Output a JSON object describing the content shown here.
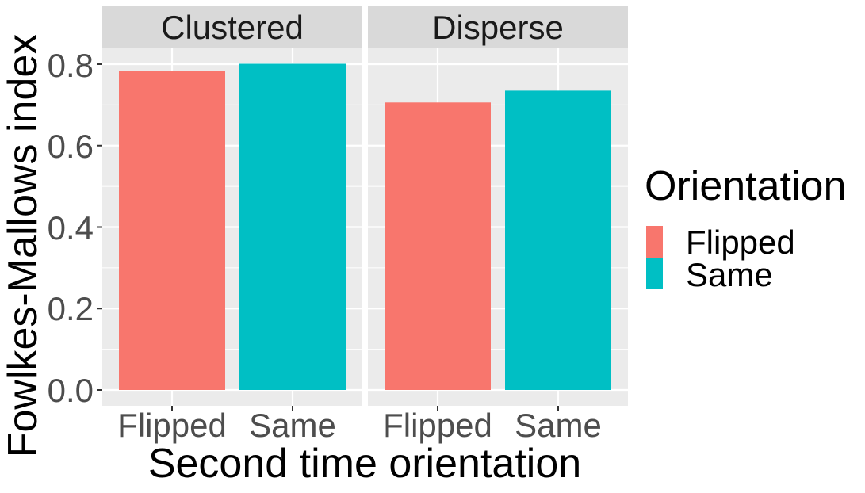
{
  "chart_data": {
    "type": "bar",
    "facets": [
      "Clustered",
      "Disperse"
    ],
    "categories": [
      "Flipped",
      "Same"
    ],
    "series": [
      {
        "name": "Flipped",
        "values": [
          0.783,
          0.706
        ]
      },
      {
        "name": "Same",
        "values": [
          0.801,
          0.735
        ]
      }
    ],
    "xlabel": "Second time orientation",
    "ylabel": "Fowlkes-Mallows index",
    "ylim": [
      0,
      0.8
    ],
    "yticks": [
      "0.0",
      "0.2",
      "0.4",
      "0.6",
      "0.8"
    ],
    "legend": {
      "title": "Orientation",
      "entries": [
        "Flipped",
        "Same"
      ],
      "placement": "right"
    },
    "grid": true,
    "colors": {
      "Flipped": "#F8766D",
      "Same": "#00BFC4",
      "panel": "#EBEBEB",
      "strip": "#D9D9D9",
      "gridline": "#FFFFFF"
    }
  }
}
